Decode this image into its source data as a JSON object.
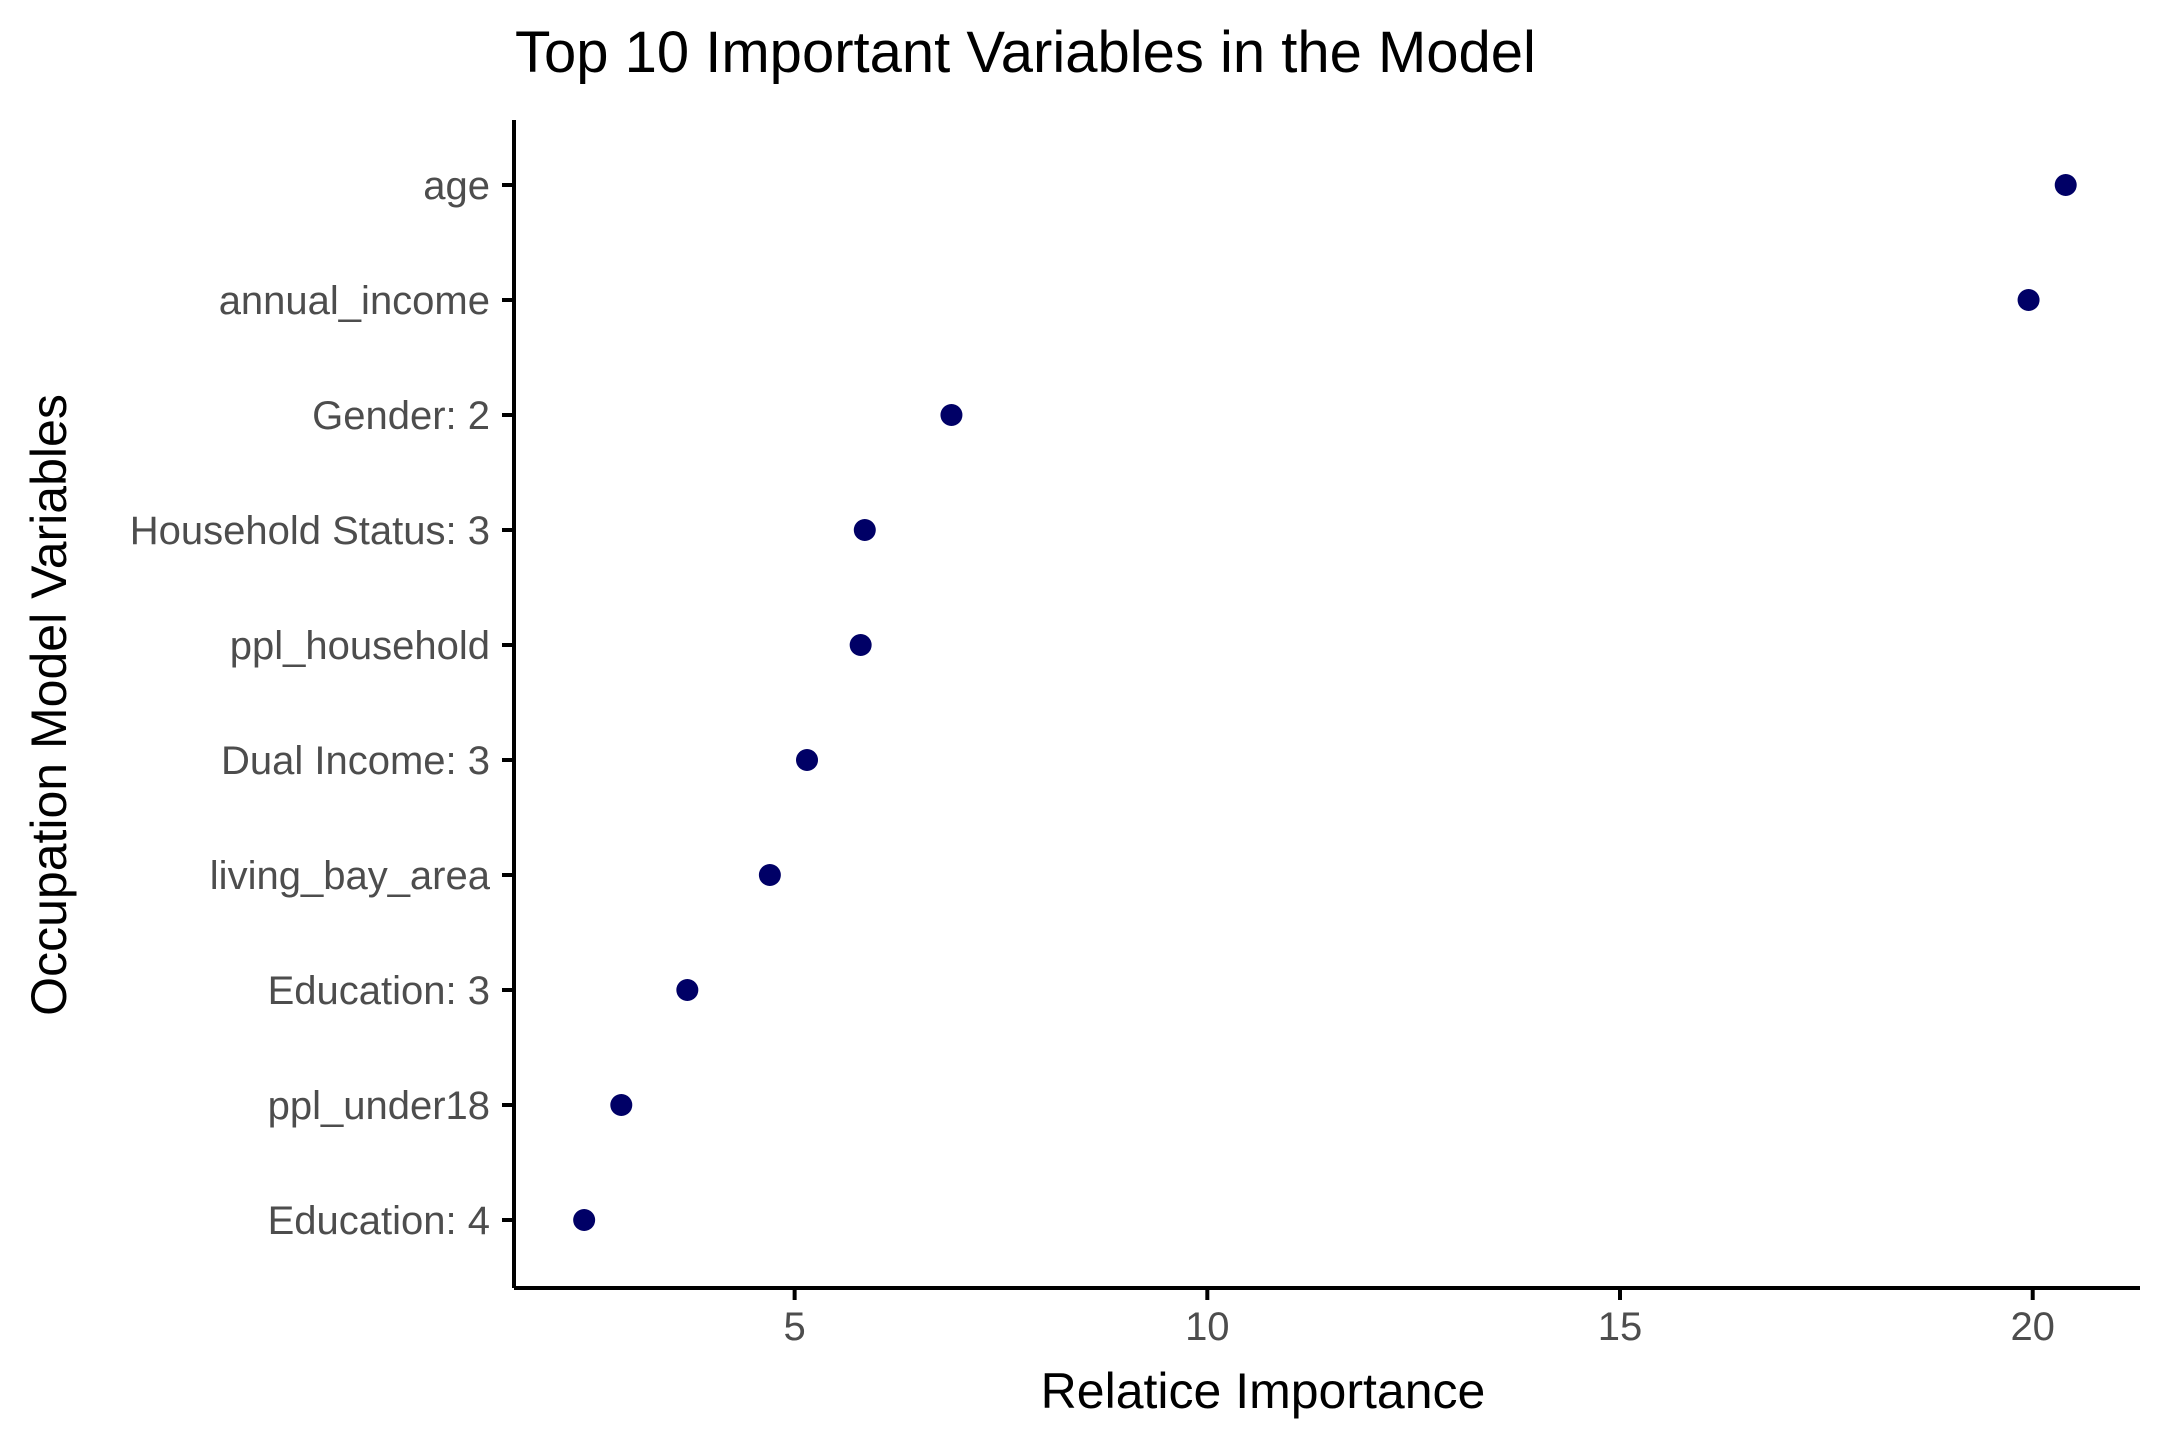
{
  "chart_data": {
    "type": "scatter",
    "title": "Top 10 Important Variables in the Model",
    "xlabel": "Relatice Importance",
    "ylabel": "Occupation Model Variables",
    "xlim": [
      1.6,
      21.3
    ],
    "x_ticks": [
      5,
      10,
      15,
      20
    ],
    "x_tick_labels": [
      "5",
      "10",
      "15",
      "20"
    ],
    "categories": [
      "age",
      "annual_income",
      "Gender: 2",
      "Household Status: 3",
      "ppl_household",
      "Dual Income: 3",
      "living_bay_area",
      "Education: 3",
      "ppl_under18",
      "Education: 4"
    ],
    "values": [
      20.4,
      19.95,
      6.9,
      5.85,
      5.8,
      5.15,
      4.7,
      3.7,
      2.9,
      2.45
    ],
    "point_color": "#000066",
    "grid": false,
    "legend": "none"
  }
}
